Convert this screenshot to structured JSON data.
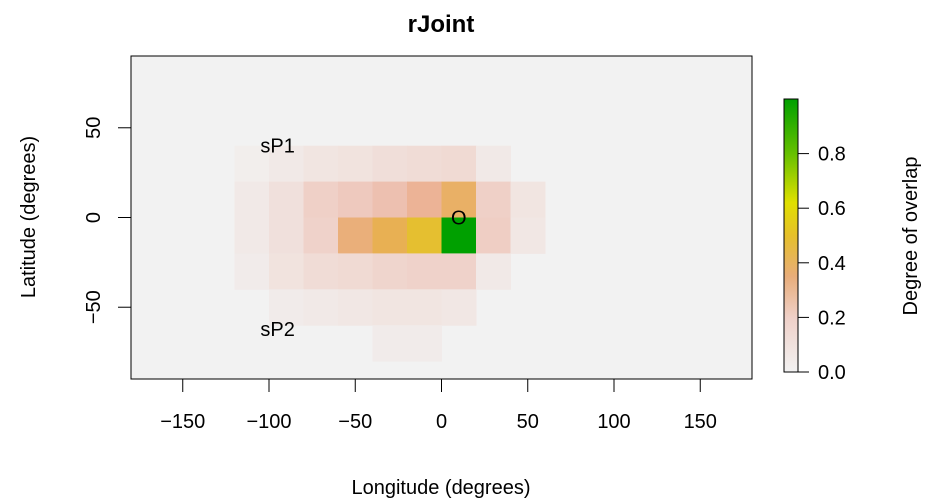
{
  "chart_data": {
    "type": "heatmap",
    "title": "rJoint",
    "xlabel": "Longitude (degrees)",
    "ylabel": "Latitude (degrees)",
    "xlim": [
      -180,
      180
    ],
    "ylim": [
      -90,
      90
    ],
    "x_ticks": [
      -150,
      -100,
      -50,
      0,
      50,
      100,
      150
    ],
    "x_tick_labels": [
      "−150",
      "−100",
      "−50",
      "0",
      "50",
      "100",
      "150"
    ],
    "y_ticks": [
      -50,
      0,
      50
    ],
    "y_tick_labels": [
      "−50",
      "0",
      "50"
    ],
    "background_value": 0.02,
    "cell_size_degrees": 20,
    "cells": [
      {
        "x0": -120,
        "y0": 20,
        "value": 0.02
      },
      {
        "x0": -100,
        "y0": 20,
        "value": 0.04
      },
      {
        "x0": -80,
        "y0": 20,
        "value": 0.06
      },
      {
        "x0": -60,
        "y0": 20,
        "value": 0.07
      },
      {
        "x0": -40,
        "y0": 20,
        "value": 0.09
      },
      {
        "x0": -20,
        "y0": 20,
        "value": 0.1
      },
      {
        "x0": 0,
        "y0": 20,
        "value": 0.11
      },
      {
        "x0": 20,
        "y0": 20,
        "value": 0.04
      },
      {
        "x0": -120,
        "y0": 0,
        "value": 0.04
      },
      {
        "x0": -100,
        "y0": 0,
        "value": 0.08
      },
      {
        "x0": -80,
        "y0": 0,
        "value": 0.15
      },
      {
        "x0": -60,
        "y0": 0,
        "value": 0.18
      },
      {
        "x0": -40,
        "y0": 0,
        "value": 0.22
      },
      {
        "x0": -20,
        "y0": 0,
        "value": 0.28
      },
      {
        "x0": 0,
        "y0": 0,
        "value": 0.36
      },
      {
        "x0": 20,
        "y0": 0,
        "value": 0.15
      },
      {
        "x0": 40,
        "y0": 0,
        "value": 0.06
      },
      {
        "x0": -120,
        "y0": -20,
        "value": 0.04
      },
      {
        "x0": -100,
        "y0": -20,
        "value": 0.08
      },
      {
        "x0": -80,
        "y0": -20,
        "value": 0.14
      },
      {
        "x0": -60,
        "y0": -20,
        "value": 0.33
      },
      {
        "x0": -40,
        "y0": -20,
        "value": 0.39
      },
      {
        "x0": -20,
        "y0": -20,
        "value": 0.47
      },
      {
        "x0": 0,
        "y0": -20,
        "value": 1.0
      },
      {
        "x0": 20,
        "y0": -20,
        "value": 0.16
      },
      {
        "x0": 40,
        "y0": -20,
        "value": 0.05
      },
      {
        "x0": -120,
        "y0": -40,
        "value": 0.03
      },
      {
        "x0": -100,
        "y0": -40,
        "value": 0.07
      },
      {
        "x0": -80,
        "y0": -40,
        "value": 0.1
      },
      {
        "x0": -60,
        "y0": -40,
        "value": 0.11
      },
      {
        "x0": -40,
        "y0": -40,
        "value": 0.13
      },
      {
        "x0": -20,
        "y0": -40,
        "value": 0.14
      },
      {
        "x0": 0,
        "y0": -40,
        "value": 0.14
      },
      {
        "x0": 20,
        "y0": -40,
        "value": 0.04
      },
      {
        "x0": -100,
        "y0": -60,
        "value": 0.03
      },
      {
        "x0": -80,
        "y0": -60,
        "value": 0.04
      },
      {
        "x0": -60,
        "y0": -60,
        "value": 0.05
      },
      {
        "x0": -40,
        "y0": -60,
        "value": 0.06
      },
      {
        "x0": -20,
        "y0": -60,
        "value": 0.06
      },
      {
        "x0": 0,
        "y0": -60,
        "value": 0.05
      },
      {
        "x0": -40,
        "y0": -80,
        "value": 0.03
      },
      {
        "x0": -20,
        "y0": -80,
        "value": 0.03
      }
    ],
    "annotations": [
      {
        "text": "sP1",
        "x": -95,
        "y": 40
      },
      {
        "text": "sP2",
        "x": -95,
        "y": -62
      },
      {
        "text": "O",
        "x": 10,
        "y": 0
      }
    ],
    "colorbar": {
      "label": "Degree of overlap",
      "range": [
        0,
        1
      ],
      "ticks": [
        0,
        0.2,
        0.4,
        0.6,
        0.8
      ],
      "tick_labels": [
        "0.0",
        "0.2",
        "0.4",
        "0.6",
        "0.8"
      ],
      "colors": [
        "#f2f2f2",
        "#eebbaa",
        "#e8b050",
        "#e5e500",
        "#00a000"
      ]
    },
    "grid": false,
    "legend": "colorbar-right"
  }
}
